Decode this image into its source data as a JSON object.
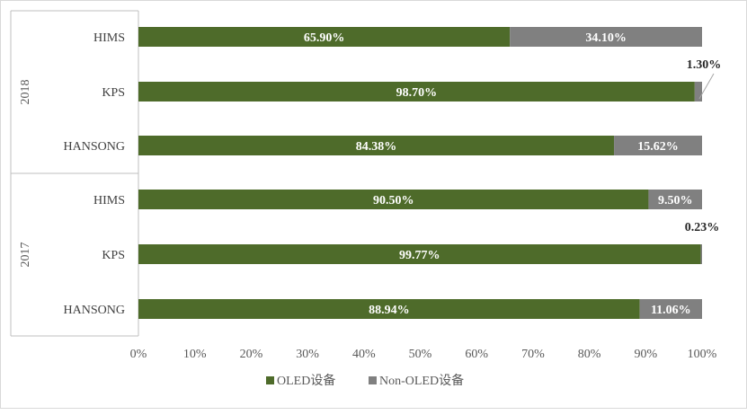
{
  "chart_data": {
    "type": "bar",
    "orientation": "horizontal",
    "stacked": true,
    "percent": true,
    "groups": [
      {
        "label": "2018",
        "categories": [
          "HIMS",
          "KPS",
          "HANSONG"
        ]
      },
      {
        "label": "2017",
        "categories": [
          "HIMS",
          "KPS",
          "HANSONG"
        ]
      }
    ],
    "series": [
      {
        "name": "OLED设备",
        "color": "#4e6b2a",
        "values": [
          65.9,
          98.7,
          84.38,
          90.5,
          99.77,
          88.94
        ],
        "labels": [
          "65.90%",
          "98.70%",
          "84.38%",
          "90.50%",
          "99.77%",
          "88.94%"
        ]
      },
      {
        "name": "Non-OLED设备",
        "color": "#808080",
        "values": [
          34.1,
          1.3,
          15.62,
          9.5,
          0.23,
          11.06
        ],
        "labels": [
          "34.10%",
          "1.30%",
          "15.62%",
          "9.50%",
          "0.23%",
          "11.06%"
        ]
      }
    ],
    "xlim": [
      0,
      100
    ],
    "xticks": [
      "0%",
      "10%",
      "20%",
      "30%",
      "40%",
      "50%",
      "60%",
      "70%",
      "80%",
      "90%",
      "100%"
    ],
    "legend_position": "bottom",
    "grid": false
  }
}
